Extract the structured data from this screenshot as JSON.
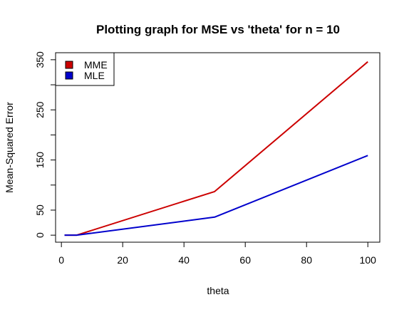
{
  "chart_data": {
    "type": "line",
    "title": "Plotting graph for MSE vs 'theta' for n =  10",
    "xlabel": "theta",
    "ylabel": "Mean-Squared Error",
    "xlim": [
      -1.9,
      103.9
    ],
    "ylim": [
      -14,
      364
    ],
    "xticks": [
      0,
      20,
      40,
      60,
      80,
      100
    ],
    "yticks": [
      0,
      50,
      100,
      150,
      200,
      250,
      300,
      350
    ],
    "ytick_labels": [
      "0",
      "50",
      "",
      "150",
      "",
      "250",
      "",
      "350"
    ],
    "grid": false,
    "legend_position": "top-left",
    "series": [
      {
        "name": "MME",
        "color": "#cc0000",
        "x": [
          1,
          5,
          50,
          100
        ],
        "y": [
          0,
          0,
          87,
          346
        ]
      },
      {
        "name": "MLE",
        "color": "#0000cc",
        "x": [
          1,
          5,
          50,
          100
        ],
        "y": [
          0,
          0,
          36,
          159
        ]
      }
    ]
  }
}
